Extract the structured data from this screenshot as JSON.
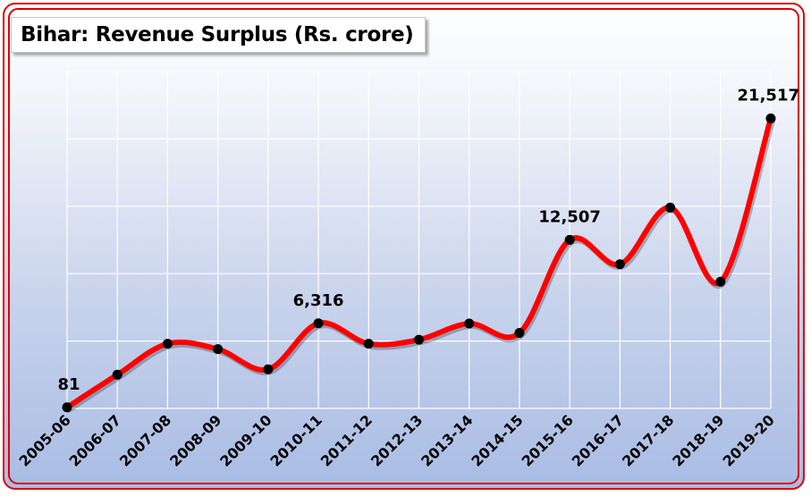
{
  "chart_data": {
    "type": "line",
    "title": "Bihar: Revenue Surplus (Rs. crore)",
    "xlabel": "",
    "ylabel": "",
    "categories": [
      "2005-06",
      "2006-07",
      "2007-08",
      "2008-09",
      "2009-10",
      "2010-11",
      "2011-12",
      "2012-13",
      "2013-14",
      "2014-15",
      "2015-16",
      "2016-17",
      "2017-18",
      "2018-19",
      "2019-20"
    ],
    "series": [
      {
        "values": [
          81,
          2500,
          4800,
          4400,
          2900,
          6316,
          4800,
          5100,
          6300,
          5600,
          12507,
          10700,
          14900,
          9400,
          21517
        ]
      }
    ],
    "data_labels": [
      {
        "index": 0,
        "text": "81"
      },
      {
        "index": 5,
        "text": "6,316"
      },
      {
        "index": 10,
        "text": "12,507"
      },
      {
        "index": 14,
        "text": "21,517"
      }
    ],
    "ylim": [
      0,
      25000
    ],
    "y_gridline_step": 5000,
    "y_tick_labels_visible": false,
    "grid": true,
    "smooth": true,
    "legend": "none",
    "colors": {
      "line": "#ff0000",
      "marker": "#000000",
      "frame": "#e00000",
      "grid": "#ffffff"
    }
  }
}
